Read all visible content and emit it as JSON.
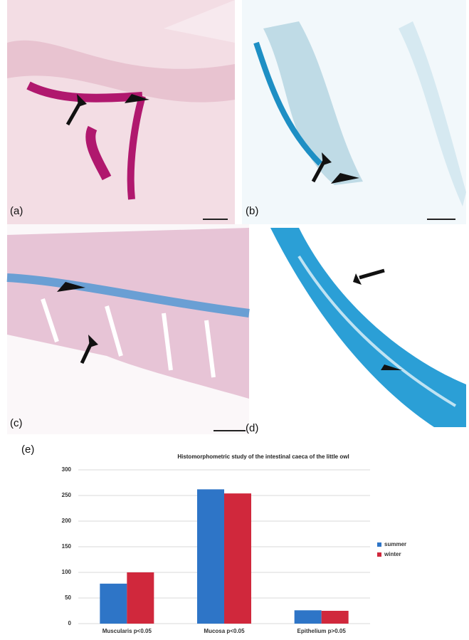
{
  "panels": {
    "a": "(a)",
    "b": "(b)",
    "c": "(c)",
    "d": "(d)",
    "e": "(e)"
  },
  "chart_data": {
    "type": "bar",
    "title": "Histomorphometric study of the intestinal caeca of the little owl",
    "categories": [
      "Muscularis p<0.05",
      "Mucosa p<0.05",
      "Epithelium p>0.05"
    ],
    "series": [
      {
        "name": "summer",
        "color": "#2e75c7",
        "values": [
          78,
          262,
          26
        ]
      },
      {
        "name": "winter",
        "color": "#d0283c",
        "values": [
          100,
          254,
          25
        ]
      }
    ],
    "ylim": [
      0,
      300
    ],
    "yticks": [
      0,
      50,
      100,
      150,
      200,
      250,
      300
    ],
    "grid": true,
    "legend": "right"
  }
}
